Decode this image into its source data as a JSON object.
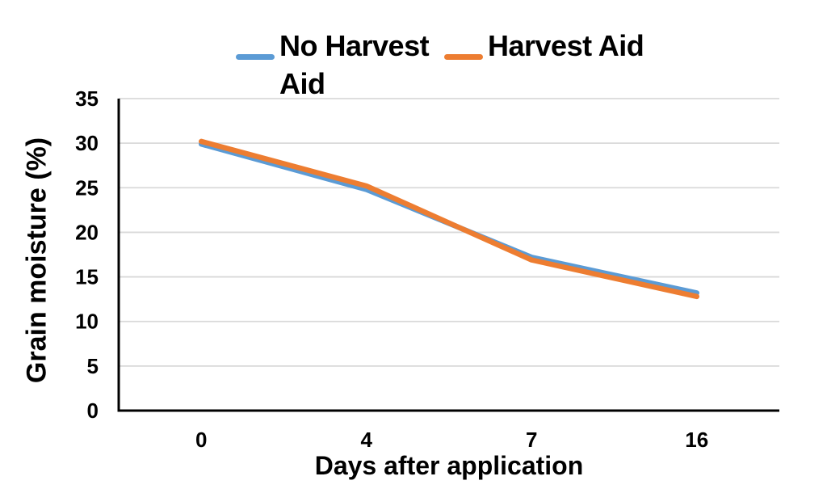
{
  "chart_data": {
    "type": "line",
    "categories": [
      "0",
      "4",
      "7",
      "16"
    ],
    "series": [
      {
        "name": "No Harvest Aid",
        "color": "#5B9BD5",
        "values": [
          29.9,
          24.8,
          17.2,
          13.2
        ]
      },
      {
        "name": "Harvest Aid",
        "color": "#ED7D31",
        "values": [
          30.2,
          25.2,
          16.9,
          12.8
        ]
      }
    ],
    "xlabel": "Days after application",
    "ylabel": "Grain moisture (%)",
    "ylim": [
      0,
      35
    ],
    "yticks": [
      0,
      5,
      10,
      15,
      20,
      25,
      30,
      35
    ],
    "grid": "horizontal-major",
    "legend_position": "top",
    "colors": {
      "axis": "#000000",
      "gridline": "#D9D9D9",
      "background": "#FFFFFF"
    }
  }
}
